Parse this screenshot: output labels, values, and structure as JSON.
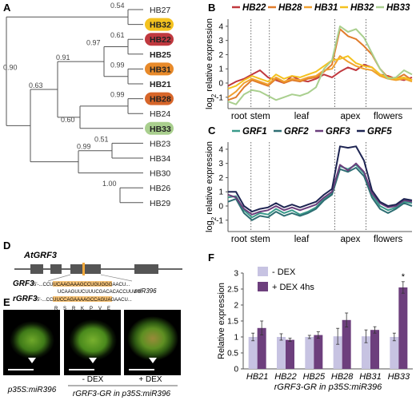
{
  "panels": {
    "A": "A",
    "B": "B",
    "C": "C",
    "D": "D",
    "E": "E",
    "F": "F"
  },
  "tree": {
    "leaves": [
      "HB27",
      "HB32",
      "HB22",
      "HB25",
      "HB31",
      "HB21",
      "HB28",
      "HB24",
      "HB33",
      "HB23",
      "HB34",
      "HB30",
      "HB26",
      "HB29"
    ],
    "highlighted": {
      "HB32": "#f4c21f",
      "HB22": "#c0393f",
      "HB31": "#e88a2a",
      "HB28": "#d7662a",
      "HB33": "#a9cf8e"
    },
    "bold_leaves": [
      "HB25",
      "HB21"
    ],
    "support_values": [
      "0.54",
      "0.61",
      "0.97",
      "0.99",
      "0.91",
      "0.99",
      "0.60",
      "0.63",
      "0.51",
      "0.99",
      "0.90",
      "1.00"
    ]
  },
  "chart_data": [
    {
      "panel": "B",
      "type": "line",
      "ylabel": "log2 relative expression",
      "ylabel_main": "log",
      "ylabel_sub": "2",
      "ylabel_rest": " relative expression",
      "ylim": [
        -1.8,
        4.5
      ],
      "yticks": [
        "-1",
        "0",
        "1",
        "2",
        "3",
        "4"
      ],
      "regions": [
        "root",
        "stem",
        "leaf",
        "apex",
        "flowers"
      ],
      "series": [
        {
          "name": "HB22",
          "color": "#c0393f",
          "values": [
            -0.2,
            0.1,
            0.3,
            0.6,
            0.9,
            0.4,
            0.2,
            0.0,
            0.5,
            0.2,
            0.1,
            0.3,
            0.6,
            0.4,
            0.8,
            1.1,
            0.9,
            1.3,
            1.1,
            0.6,
            0.5,
            0.3,
            0.2,
            0.4
          ]
        },
        {
          "name": "HB28",
          "color": "#e07b2a",
          "values": [
            -1.2,
            -1.0,
            -0.3,
            0.2,
            0.0,
            -0.2,
            0.3,
            0.0,
            0.2,
            0.1,
            0.3,
            0.4,
            0.8,
            1.3,
            3.8,
            3.3,
            3.1,
            2.6,
            2.0,
            1.0,
            0.4,
            0.3,
            0.6,
            0.2
          ]
        },
        {
          "name": "HB31",
          "color": "#f0a030",
          "values": [
            -1.0,
            -0.6,
            0.0,
            0.3,
            0.1,
            -0.1,
            0.4,
            0.1,
            0.3,
            0.2,
            0.4,
            0.5,
            0.9,
            1.0,
            1.9,
            1.5,
            1.2,
            1.0,
            0.9,
            0.5,
            0.3,
            0.2,
            0.3,
            0.1
          ]
        },
        {
          "name": "HB32",
          "color": "#f4c21f",
          "values": [
            -0.4,
            -0.2,
            0.2,
            0.5,
            0.3,
            0.1,
            0.6,
            0.3,
            0.5,
            0.4,
            0.6,
            0.8,
            1.2,
            1.6,
            1.7,
            1.9,
            1.4,
            1.2,
            1.1,
            0.6,
            0.4,
            0.3,
            0.4,
            0.2
          ]
        },
        {
          "name": "HB33",
          "color": "#a9cf8e",
          "values": [
            -1.3,
            -1.5,
            -0.8,
            -0.5,
            -0.6,
            -0.9,
            -1.2,
            -1.0,
            -0.8,
            -0.9,
            -0.7,
            -0.3,
            1.0,
            1.6,
            4.0,
            3.6,
            3.8,
            3.2,
            2.1,
            1.0,
            0.3,
            0.4,
            0.9,
            0.6
          ]
        }
      ]
    },
    {
      "panel": "C",
      "type": "line",
      "ylabel": "log2 relative expression",
      "ylabel_main": "log",
      "ylabel_sub": "2",
      "ylabel_rest": " relative expression",
      "ylim": [
        -1.8,
        4.5
      ],
      "yticks": [
        "-1",
        "0",
        "1",
        "2",
        "3",
        "4"
      ],
      "regions": [
        "root",
        "stem",
        "leaf",
        "apex",
        "flowers"
      ],
      "series": [
        {
          "name": "GRF1",
          "color": "#3a9a8a",
          "values": [
            0.6,
            0.7,
            -0.3,
            -0.8,
            -0.5,
            -0.6,
            -0.2,
            -0.5,
            -0.3,
            -0.6,
            -0.4,
            -0.1,
            0.5,
            0.9,
            2.8,
            2.6,
            2.9,
            2.3,
            0.8,
            0.0,
            -0.3,
            -0.1,
            0.3,
            0.2
          ]
        },
        {
          "name": "GRF2",
          "color": "#2e6e73",
          "values": [
            0.3,
            0.5,
            -0.5,
            -1.0,
            -0.7,
            -0.8,
            -0.4,
            -0.7,
            -0.5,
            -0.7,
            -0.5,
            -0.2,
            0.4,
            0.8,
            2.6,
            2.4,
            2.7,
            2.1,
            0.6,
            -0.2,
            -0.5,
            -0.2,
            0.2,
            0.0
          ]
        },
        {
          "name": "GRF3",
          "color": "#6a3e7c",
          "values": [
            0.8,
            0.6,
            -0.2,
            -0.6,
            -0.4,
            -0.3,
            0.0,
            -0.3,
            -0.1,
            -0.3,
            -0.1,
            0.1,
            0.6,
            1.0,
            2.9,
            2.5,
            3.0,
            2.4,
            0.9,
            0.2,
            -0.1,
            0.0,
            0.4,
            0.3
          ]
        },
        {
          "name": "GRF5",
          "color": "#1d2452",
          "values": [
            1.0,
            1.0,
            0.0,
            -0.4,
            -0.2,
            -0.1,
            0.2,
            -0.1,
            0.1,
            -0.1,
            0.1,
            0.3,
            0.8,
            1.2,
            4.2,
            4.1,
            4.2,
            3.2,
            1.1,
            0.3,
            0.0,
            0.1,
            0.5,
            0.4
          ]
        }
      ]
    },
    {
      "panel": "F",
      "type": "bar",
      "ylabel": "Relative expression",
      "xlabel": "rGRF3-GR in p35S:miR396",
      "ylim": [
        0,
        3
      ],
      "yticks": [
        "0",
        "0.5",
        "1",
        "1.5",
        "2",
        "2.5",
        "3"
      ],
      "categories": [
        "HB21",
        "HB22",
        "HB25",
        "HB28",
        "HB31",
        "HB33"
      ],
      "series": [
        {
          "name": "- DEX",
          "color": "#c7c3e2",
          "values": [
            1.0,
            1.0,
            1.0,
            1.02,
            1.02,
            1.0
          ],
          "errors": [
            0.12,
            0.1,
            0.05,
            0.25,
            0.2,
            0.12
          ]
        },
        {
          "name": "+ DEX 4hs",
          "color": "#6d3f7d",
          "values": [
            1.28,
            0.91,
            1.06,
            1.53,
            1.22,
            2.55
          ],
          "errors": [
            0.22,
            0.05,
            0.1,
            0.22,
            0.1,
            0.18
          ]
        }
      ],
      "annotations": [
        {
          "category": "HB33",
          "text": "*"
        }
      ]
    }
  ],
  "panelD": {
    "gene": "AtGRF3",
    "row1_label": "GRF3",
    "row1_seq": "5'-...CCUUCAAGAAAGCCUGUGGGAACU...",
    "mirna_seq": "UCAAGUUCUUUCGACACACCUUU-5'",
    "mirna_label": "miR396",
    "row2_label": "rGRF3",
    "row2_seq": "5'-...CCUUCCAGAAAAGCCAGUAGAACU...",
    "aa": [
      "R",
      "S",
      "R",
      "K",
      "P",
      "V",
      "E"
    ]
  },
  "panelE": {
    "captions": [
      "p35S:miR396",
      "- DEX",
      "+ DEX"
    ],
    "group_caption": "rGRF3-GR in p35S:miR396"
  }
}
